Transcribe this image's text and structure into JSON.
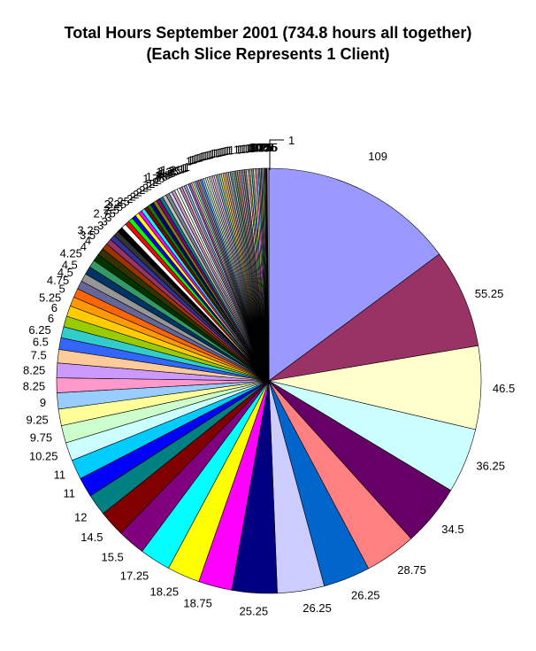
{
  "title": {
    "line1": "Total Hours September 2001 (734.8 hours all together)",
    "line2": "(Each Slice Represents 1 Client)"
  },
  "chart_data": {
    "type": "pie",
    "title": "Total Hours September 2001 (734.8 hours all together) (Each Slice Represents 1 Client)",
    "total_hours": 734.8,
    "unit": "hours",
    "slice_note": "Each slice represents 1 client",
    "start_angle_deg": 0,
    "direction": "clockwise",
    "legend": "none",
    "callout_label": "1",
    "values": [
      109,
      55.25,
      46.5,
      36.25,
      34.5,
      28.75,
      26.25,
      26.25,
      25.25,
      18.75,
      18.25,
      17.25,
      15.5,
      14.5,
      12,
      11,
      11,
      10.25,
      9.75,
      9.25,
      9,
      8.25,
      8.25,
      7.5,
      6.5,
      6.25,
      6,
      6,
      5.25,
      5,
      4.75,
      4.5,
      4.5,
      4.25,
      4,
      4,
      3.5,
      3.25,
      3,
      3,
      3,
      2.75,
      2.5,
      2.5,
      2.25,
      2.25,
      2,
      2,
      2,
      2,
      2,
      2,
      2,
      2,
      2,
      2,
      1.75,
      1.75,
      1.5,
      1.5,
      1.5,
      1.25,
      1.25,
      1.25,
      1,
      1,
      1,
      1,
      1,
      1,
      1,
      1,
      1,
      1,
      1,
      1,
      1,
      1,
      1,
      1,
      1,
      1,
      1,
      1,
      1,
      1,
      1,
      1,
      1,
      1,
      1,
      1,
      1,
      1,
      1,
      1,
      1,
      1,
      1,
      1,
      1,
      1,
      1,
      0.8,
      0.75,
      0.75,
      0.75,
      0.75,
      0.5,
      0.5,
      0.25,
      0.25,
      0.25,
      1
    ],
    "colors": {
      "background": "#FFFFFF",
      "slice_stroke": "#000000",
      "chart_fill_cycle": [
        "#9999FF",
        "#993366",
        "#FFFFCC",
        "#CCFFFF",
        "#660066",
        "#FF8080",
        "#0066CC",
        "#CCCCFF",
        "#000080",
        "#FF00FF",
        "#FFFF00",
        "#00FFFF",
        "#800080",
        "#800000",
        "#008080",
        "#0000FF",
        "#00CCFF",
        "#CCFFFF",
        "#CCFFCC",
        "#FFFF99",
        "#99CCFF",
        "#FF99CC",
        "#CC99FF",
        "#FFCC99",
        "#3366FF",
        "#33CCCC",
        "#99CC00",
        "#FFCC00",
        "#FF9900",
        "#FF6600",
        "#666699",
        "#969696",
        "#003366",
        "#339966",
        "#003300",
        "#333300",
        "#993300",
        "#993366",
        "#333399",
        "#333333"
      ],
      "standard_cycle": [
        "#000000",
        "#FFFFFF",
        "#FF0000",
        "#00FF00",
        "#0000FF",
        "#FFFF00",
        "#FF00FF",
        "#00FFFF",
        "#800000",
        "#008000",
        "#000080",
        "#808000",
        "#800080",
        "#008080",
        "#C0C0C0",
        "#808080"
      ],
      "overflow_note": "slices beyond 56 repeat the cycle dithered 50% with white"
    }
  }
}
